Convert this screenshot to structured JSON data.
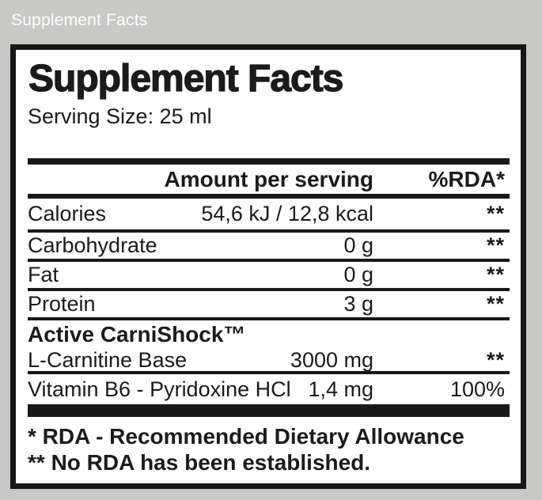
{
  "page": {
    "caption": "Supplement Facts",
    "colors": {
      "background": "#c8c8c6",
      "caption_text": "#ffffff",
      "panel_background": "#ffffff",
      "panel_border": "#171717",
      "text": "#1b1b1b",
      "rules": "#191919"
    }
  },
  "panel": {
    "title": "Supplement Facts",
    "serving_size": "Serving Size: 25 ml",
    "columns": {
      "amount": "Amount per serving",
      "rda": "%RDA*"
    },
    "nutrients": [
      {
        "label": "Calories",
        "amount": "54,6 kJ / 12,8 kcal",
        "rda": "**"
      },
      {
        "label": "Carbohydrate",
        "amount": "0 g",
        "rda": "**"
      },
      {
        "label": "Fat",
        "amount": "0 g",
        "rda": "**"
      },
      {
        "label": "Protein",
        "amount": "3 g",
        "rda": "**"
      }
    ],
    "section_header": "Active CarniShock™",
    "actives": [
      {
        "label": "L-Carnitine Base",
        "amount": "3000 mg",
        "rda": "**"
      },
      {
        "label": "Vitamin B6 - Pyridoxine HCl",
        "amount": "1,4 mg",
        "rda": "100%"
      }
    ],
    "footnotes": [
      "* RDA - Recommended Dietary Allowance",
      "** No RDA has been established."
    ]
  }
}
